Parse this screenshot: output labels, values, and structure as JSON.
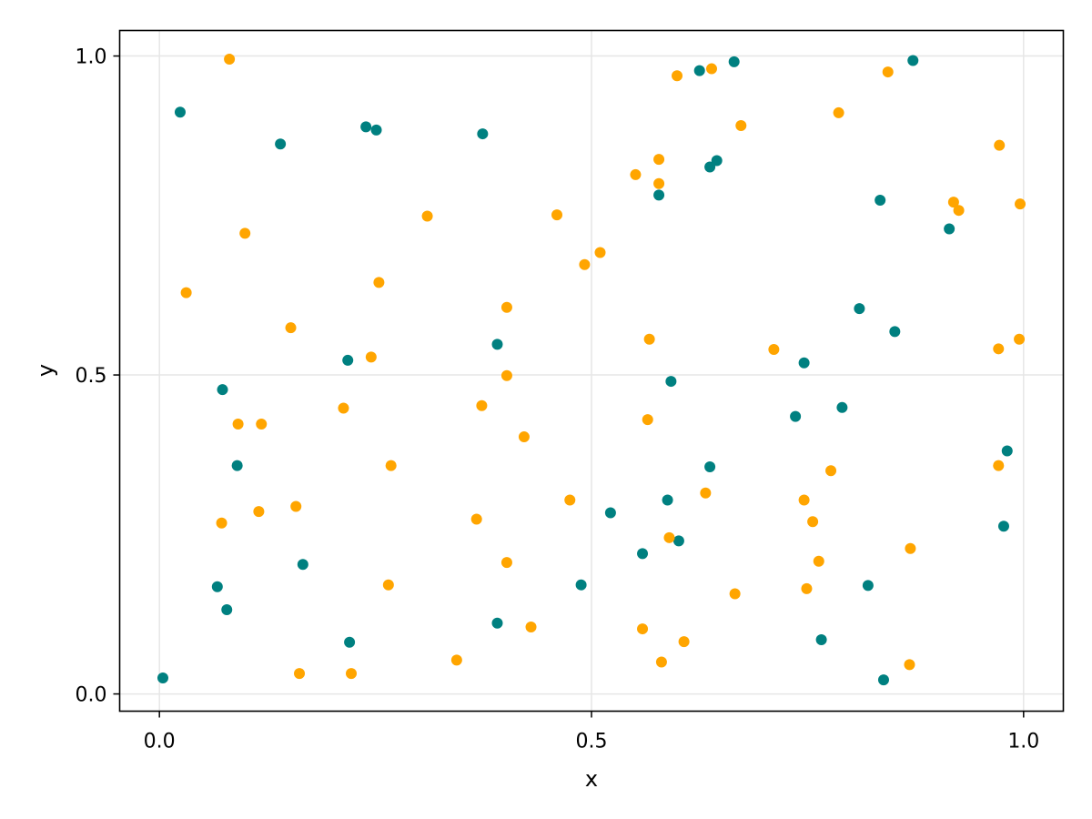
{
  "chart_data": {
    "type": "scatter",
    "title": "",
    "xlabel": "x",
    "ylabel": "y",
    "xlim": [
      -0.046,
      1.046
    ],
    "ylim": [
      -0.027,
      1.04
    ],
    "xticks": [
      0.0,
      0.5,
      1.0
    ],
    "yticks": [
      0.0,
      0.5,
      1.0
    ],
    "xtick_labels": [
      "0.0",
      "0.5",
      "1.0"
    ],
    "ytick_labels": [
      "0.0",
      "0.5",
      "1.0"
    ],
    "grid": true,
    "series": [
      {
        "color": "#008080",
        "points": [
          [
            0.024,
            0.912
          ],
          [
            0.14,
            0.862
          ],
          [
            0.239,
            0.889
          ],
          [
            0.251,
            0.884
          ],
          [
            0.374,
            0.878
          ],
          [
            0.665,
            0.991
          ],
          [
            0.625,
            0.977
          ],
          [
            0.872,
            0.993
          ],
          [
            0.645,
            0.836
          ],
          [
            0.637,
            0.826
          ],
          [
            0.578,
            0.782
          ],
          [
            0.834,
            0.774
          ],
          [
            0.914,
            0.729
          ],
          [
            0.81,
            0.604
          ],
          [
            0.851,
            0.568
          ],
          [
            0.391,
            0.548
          ],
          [
            0.218,
            0.523
          ],
          [
            0.746,
            0.519
          ],
          [
            0.592,
            0.49
          ],
          [
            0.073,
            0.477
          ],
          [
            0.79,
            0.449
          ],
          [
            0.736,
            0.435
          ],
          [
            0.981,
            0.381
          ],
          [
            0.09,
            0.358
          ],
          [
            0.637,
            0.356
          ],
          [
            0.588,
            0.304
          ],
          [
            0.522,
            0.284
          ],
          [
            0.977,
            0.263
          ],
          [
            0.601,
            0.24
          ],
          [
            0.559,
            0.22
          ],
          [
            0.166,
            0.203
          ],
          [
            0.488,
            0.171
          ],
          [
            0.067,
            0.168
          ],
          [
            0.078,
            0.132
          ],
          [
            0.82,
            0.17
          ],
          [
            0.391,
            0.111
          ],
          [
            0.22,
            0.081
          ],
          [
            0.766,
            0.085
          ],
          [
            0.004,
            0.025
          ],
          [
            0.838,
            0.022
          ]
        ]
      },
      {
        "color": "#ffa500",
        "points": [
          [
            0.081,
            0.995
          ],
          [
            0.599,
            0.969
          ],
          [
            0.639,
            0.98
          ],
          [
            0.843,
            0.975
          ],
          [
            0.786,
            0.911
          ],
          [
            0.673,
            0.891
          ],
          [
            0.972,
            0.86
          ],
          [
            0.578,
            0.838
          ],
          [
            0.551,
            0.814
          ],
          [
            0.578,
            0.8
          ],
          [
            0.919,
            0.771
          ],
          [
            0.925,
            0.758
          ],
          [
            0.996,
            0.768
          ],
          [
            0.31,
            0.749
          ],
          [
            0.46,
            0.751
          ],
          [
            0.099,
            0.722
          ],
          [
            0.51,
            0.692
          ],
          [
            0.492,
            0.673
          ],
          [
            0.031,
            0.629
          ],
          [
            0.254,
            0.645
          ],
          [
            0.402,
            0.606
          ],
          [
            0.152,
            0.574
          ],
          [
            0.567,
            0.556
          ],
          [
            0.245,
            0.528
          ],
          [
            0.711,
            0.54
          ],
          [
            0.971,
            0.541
          ],
          [
            0.995,
            0.556
          ],
          [
            0.402,
            0.499
          ],
          [
            0.373,
            0.452
          ],
          [
            0.213,
            0.448
          ],
          [
            0.091,
            0.423
          ],
          [
            0.118,
            0.423
          ],
          [
            0.565,
            0.43
          ],
          [
            0.422,
            0.403
          ],
          [
            0.268,
            0.358
          ],
          [
            0.777,
            0.35
          ],
          [
            0.971,
            0.358
          ],
          [
            0.632,
            0.315
          ],
          [
            0.475,
            0.304
          ],
          [
            0.746,
            0.304
          ],
          [
            0.158,
            0.294
          ],
          [
            0.115,
            0.286
          ],
          [
            0.072,
            0.268
          ],
          [
            0.367,
            0.274
          ],
          [
            0.756,
            0.27
          ],
          [
            0.59,
            0.245
          ],
          [
            0.869,
            0.228
          ],
          [
            0.402,
            0.206
          ],
          [
            0.763,
            0.208
          ],
          [
            0.265,
            0.171
          ],
          [
            0.749,
            0.165
          ],
          [
            0.666,
            0.157
          ],
          [
            0.43,
            0.105
          ],
          [
            0.559,
            0.102
          ],
          [
            0.607,
            0.082
          ],
          [
            0.344,
            0.053
          ],
          [
            0.581,
            0.05
          ],
          [
            0.868,
            0.046
          ],
          [
            0.162,
            0.032
          ],
          [
            0.222,
            0.032
          ]
        ]
      }
    ]
  }
}
